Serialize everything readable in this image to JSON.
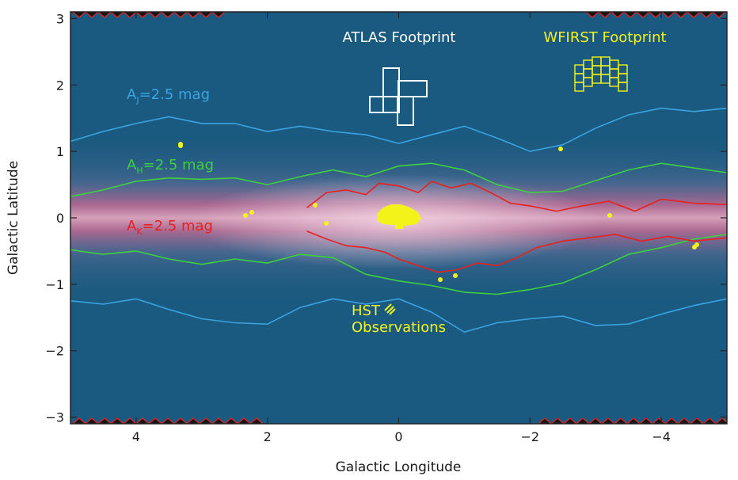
{
  "chart_data": {
    "type": "image",
    "xlabel": "Galactic Longitude",
    "ylabel": "Galactic Latitude",
    "xlim": [
      5,
      -5
    ],
    "ylim": [
      -3.1,
      3.1
    ],
    "x_ticks": [
      4,
      2,
      0,
      -2,
      -4
    ],
    "y_ticks": [
      -3,
      -2,
      -1,
      0,
      1,
      2,
      3
    ],
    "x_tick_labels": [
      "4",
      "2",
      "0",
      "−2",
      "−4"
    ],
    "y_tick_labels": [
      "−3",
      "−2",
      "−1",
      "0",
      "1",
      "2",
      "3"
    ],
    "colors": {
      "background": "#1b5a80",
      "aj_contour": "#3aa3e0",
      "ah_contour": "#3fcf3f",
      "ak_contour": "#e82020",
      "atlas": "#ffffff",
      "wfirst": "#f3f31a",
      "hst": "#f3f31a"
    },
    "annotations": {
      "atlas": "ATLAS Footprint",
      "wfirst": "WFIRST Footprint",
      "hst_line1": "HST",
      "hst_line2": "Observations",
      "aj": {
        "pre": "A",
        "sub": "J",
        "post": "=2.5 mag"
      },
      "ah": {
        "pre": "A",
        "sub": "H",
        "post": "=2.5 mag"
      },
      "ak": {
        "pre": "A",
        "sub": "K",
        "post": "=2.5 mag"
      }
    },
    "contours": [
      {
        "label": "A_J = 2.5 mag",
        "color": "#3aa3e0",
        "upper": [
          [
            5,
            1.15
          ],
          [
            4.5,
            1.3
          ],
          [
            4,
            1.42
          ],
          [
            3.5,
            1.52
          ],
          [
            3,
            1.42
          ],
          [
            2.5,
            1.42
          ],
          [
            2,
            1.3
          ],
          [
            1.5,
            1.38
          ],
          [
            1,
            1.3
          ],
          [
            0.5,
            1.25
          ],
          [
            0,
            1.12
          ],
          [
            -0.5,
            1.25
          ],
          [
            -1,
            1.38
          ],
          [
            -1.5,
            1.2
          ],
          [
            -2,
            1.0
          ],
          [
            -2.5,
            1.1
          ],
          [
            -3,
            1.35
          ],
          [
            -3.5,
            1.55
          ],
          [
            -4,
            1.65
          ],
          [
            -4.5,
            1.6
          ],
          [
            -5,
            1.65
          ]
        ],
        "lower": [
          [
            5,
            -1.25
          ],
          [
            4.5,
            -1.3
          ],
          [
            4,
            -1.22
          ],
          [
            3.5,
            -1.38
          ],
          [
            3,
            -1.52
          ],
          [
            2.5,
            -1.58
          ],
          [
            2,
            -1.6
          ],
          [
            1.5,
            -1.35
          ],
          [
            1,
            -1.22
          ],
          [
            0.5,
            -1.3
          ],
          [
            0,
            -1.22
          ],
          [
            -0.5,
            -1.42
          ],
          [
            -1,
            -1.72
          ],
          [
            -1.5,
            -1.58
          ],
          [
            -2,
            -1.52
          ],
          [
            -2.5,
            -1.48
          ],
          [
            -3,
            -1.62
          ],
          [
            -3.5,
            -1.6
          ],
          [
            -4,
            -1.45
          ],
          [
            -4.5,
            -1.32
          ],
          [
            -5,
            -1.22
          ]
        ]
      },
      {
        "label": "A_H = 2.5 mag",
        "color": "#3fcf3f",
        "upper": [
          [
            5,
            0.32
          ],
          [
            4.5,
            0.42
          ],
          [
            4,
            0.55
          ],
          [
            3.5,
            0.6
          ],
          [
            3,
            0.58
          ],
          [
            2.5,
            0.6
          ],
          [
            2,
            0.5
          ],
          [
            1.5,
            0.62
          ],
          [
            1,
            0.72
          ],
          [
            0.5,
            0.62
          ],
          [
            0,
            0.78
          ],
          [
            -0.5,
            0.82
          ],
          [
            -1,
            0.72
          ],
          [
            -1.5,
            0.5
          ],
          [
            -2,
            0.38
          ],
          [
            -2.5,
            0.4
          ],
          [
            -3,
            0.56
          ],
          [
            -3.5,
            0.72
          ],
          [
            -4,
            0.82
          ],
          [
            -4.5,
            0.75
          ],
          [
            -5,
            0.68
          ]
        ],
        "lower": [
          [
            5,
            -0.48
          ],
          [
            4.5,
            -0.55
          ],
          [
            4,
            -0.5
          ],
          [
            3.5,
            -0.62
          ],
          [
            3,
            -0.7
          ],
          [
            2.5,
            -0.62
          ],
          [
            2,
            -0.68
          ],
          [
            1.5,
            -0.55
          ],
          [
            1,
            -0.6
          ],
          [
            0.5,
            -0.85
          ],
          [
            0,
            -0.95
          ],
          [
            -0.5,
            -1.02
          ],
          [
            -1,
            -1.12
          ],
          [
            -1.5,
            -1.15
          ],
          [
            -2,
            -1.08
          ],
          [
            -2.5,
            -0.98
          ],
          [
            -3,
            -0.78
          ],
          [
            -3.5,
            -0.55
          ],
          [
            -4,
            -0.45
          ],
          [
            -4.5,
            -0.32
          ],
          [
            -5,
            -0.25
          ]
        ]
      },
      {
        "label": "A_K = 2.5 mag",
        "color": "#e82020",
        "upper": [
          [
            1.4,
            0.15
          ],
          [
            1.1,
            0.38
          ],
          [
            0.8,
            0.42
          ],
          [
            0.5,
            0.35
          ],
          [
            0.3,
            0.52
          ],
          [
            0,
            0.48
          ],
          [
            -0.3,
            0.38
          ],
          [
            -0.5,
            0.55
          ],
          [
            -0.8,
            0.45
          ],
          [
            -1.1,
            0.52
          ],
          [
            -1.4,
            0.38
          ],
          [
            -1.7,
            0.22
          ],
          [
            -2.0,
            0.18
          ],
          [
            -2.4,
            0.1
          ],
          [
            -2.8,
            0.18
          ],
          [
            -3.2,
            0.25
          ],
          [
            -3.6,
            0.1
          ],
          [
            -4.0,
            0.28
          ],
          [
            -4.5,
            0.22
          ],
          [
            -5.0,
            0.2
          ]
        ],
        "lower": [
          [
            1.4,
            -0.2
          ],
          [
            1.1,
            -0.32
          ],
          [
            0.8,
            -0.42
          ],
          [
            0.5,
            -0.45
          ],
          [
            0.2,
            -0.52
          ],
          [
            0,
            -0.62
          ],
          [
            -0.3,
            -0.72
          ],
          [
            -0.6,
            -0.82
          ],
          [
            -0.9,
            -0.78
          ],
          [
            -1.2,
            -0.68
          ],
          [
            -1.5,
            -0.72
          ],
          [
            -1.8,
            -0.6
          ],
          [
            -2.1,
            -0.45
          ],
          [
            -2.5,
            -0.35
          ],
          [
            -2.9,
            -0.3
          ],
          [
            -3.3,
            -0.25
          ],
          [
            -3.7,
            -0.35
          ],
          [
            -4.1,
            -0.28
          ],
          [
            -4.5,
            -0.35
          ],
          [
            -5.0,
            -0.3
          ]
        ]
      }
    ]
  }
}
